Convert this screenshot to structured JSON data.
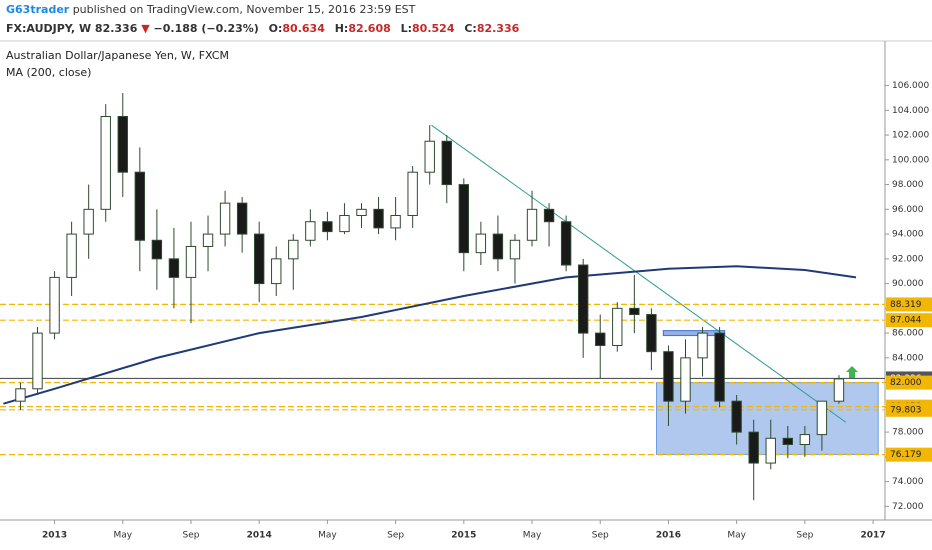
{
  "header": {
    "publisher": "G63trader",
    "published": "published on TradingView.com, November 15, 2016 23:59 EST",
    "symbol": "FX:AUDJPY, W",
    "last": "82.336",
    "change": "−0.188 (−0.23%)",
    "ohlc": [
      {
        "label": "O:",
        "value": "80.634"
      },
      {
        "label": "H:",
        "value": "82.608"
      },
      {
        "label": "L:",
        "value": "80.524"
      },
      {
        "label": "C:",
        "value": "82.336"
      }
    ]
  },
  "chart_data": {
    "type": "candlestick",
    "title": "Australian Dollar/Japanese Yen, W, FXCM",
    "up_color": "#ffffff",
    "down_color": "#1a1a1a",
    "outline_color": "#2e4a2e",
    "x": [
      -2,
      -1,
      0,
      1,
      2,
      3,
      4,
      5,
      6,
      7,
      8,
      9,
      10,
      11,
      12,
      13,
      14,
      15,
      16,
      17,
      18,
      19,
      20,
      21,
      22,
      23,
      24,
      25,
      26,
      27,
      28,
      29,
      30,
      31,
      32,
      33,
      34,
      35,
      36,
      37,
      38,
      39,
      40,
      41,
      42,
      43,
      44,
      45,
      46
    ],
    "open": [
      80.5,
      81.5,
      86,
      90.5,
      94,
      96,
      103.5,
      99,
      93.5,
      92,
      90.5,
      93,
      94,
      96.5,
      94,
      90,
      92,
      93.5,
      95,
      94.2,
      95.5,
      96,
      94.5,
      95.5,
      99,
      101.5,
      98,
      92.5,
      94,
      92,
      93.5,
      96,
      95,
      91.5,
      86,
      85,
      88,
      87.5,
      84.5,
      80.5,
      84,
      86,
      80.5,
      78,
      75.5,
      77.5,
      77,
      77.8,
      80.5
    ],
    "high": [
      82,
      86.5,
      91,
      95,
      98,
      104.5,
      105.4,
      101,
      96,
      94.5,
      95,
      95.5,
      97.5,
      97,
      95,
      93,
      94,
      96,
      95.8,
      96.5,
      96.5,
      97,
      97,
      99.5,
      102.8,
      102,
      98.5,
      95,
      95.5,
      94,
      97.5,
      96.5,
      95.5,
      92,
      87.5,
      88.5,
      90.7,
      88,
      85,
      85.5,
      86.5,
      86.5,
      81,
      79,
      79,
      78.5,
      78.5,
      80.5,
      82.6
    ],
    "low": [
      79.8,
      81,
      85.5,
      89,
      92,
      95,
      97,
      91,
      89.5,
      88,
      86.8,
      91,
      93,
      92.5,
      88.5,
      89,
      89.5,
      93,
      93.5,
      94,
      94.5,
      94,
      93.5,
      94.5,
      98,
      96.5,
      91,
      91.5,
      91,
      90,
      93,
      93,
      91,
      84,
      82.3,
      84.5,
      86,
      83,
      78.5,
      79.5,
      82.5,
      80,
      77,
      72.5,
      75,
      75.9,
      76,
      76.5,
      80.3
    ],
    "close": [
      81.5,
      86,
      90.5,
      94,
      96,
      103.5,
      99,
      93.5,
      92,
      90.5,
      93,
      94,
      96.5,
      94,
      90,
      92,
      93.5,
      95,
      94.2,
      95.5,
      96,
      94.5,
      95.5,
      99,
      101.5,
      98,
      92.5,
      94,
      92,
      93.5,
      96,
      95,
      91.5,
      86,
      85,
      88,
      87.5,
      84.5,
      80.5,
      84,
      86,
      80.5,
      78,
      75.5,
      77.5,
      77,
      77.8,
      80.5,
      82.3
    ],
    "indicators": [
      {
        "name": "MA (200, close)",
        "type": "line",
        "color": "#1f3a78",
        "x": [
          -3,
          0,
          6,
          12,
          18,
          24,
          30,
          36,
          40,
          44,
          47
        ],
        "values": [
          80.3,
          81.5,
          84,
          86,
          87.3,
          89,
          90.5,
          91.2,
          91.4,
          91.1,
          90.5
        ]
      }
    ],
    "levels": [
      {
        "value": 88.319,
        "color": "#f2b705"
      },
      {
        "value": 87.044,
        "color": "#f2b705"
      },
      {
        "value": 82.336,
        "color": "#555555"
      },
      {
        "value": 82,
        "label": "82.000",
        "color": "#f2b705"
      },
      {
        "value": 80.058,
        "color": "#f2b705"
      },
      {
        "value": 79.803,
        "color": "#f2b705"
      },
      {
        "value": 76.179,
        "color": "#f2b705"
      }
    ],
    "drawings": [
      {
        "type": "rectangle",
        "x": [
          35.3,
          48.3
        ],
        "y": [
          76.2,
          82
        ],
        "color": "#6f9be0"
      },
      {
        "type": "rectangle",
        "x": [
          35.7,
          39.3
        ],
        "y": [
          85.8,
          86.2
        ],
        "color": "#3f6fd0"
      },
      {
        "type": "trendline",
        "x": [
          22.1,
          46.4
        ],
        "y": [
          102.8,
          78.8
        ],
        "color": "#2a9d8f"
      }
    ],
    "xlim": [
      -3.2,
      48.7
    ],
    "ylim": [
      70.9,
      109.6
    ],
    "xticks": [
      {
        "value": 0,
        "label": "2013"
      },
      {
        "value": 4,
        "label": "May"
      },
      {
        "value": 8,
        "label": "Sep"
      },
      {
        "value": 12,
        "label": "2014"
      },
      {
        "value": 16,
        "label": "May"
      },
      {
        "value": 20,
        "label": "Sep"
      },
      {
        "value": 24,
        "label": "2015"
      },
      {
        "value": 28,
        "label": "May"
      },
      {
        "value": 32,
        "label": "Sep"
      },
      {
        "value": 36,
        "label": "2016"
      },
      {
        "value": 40,
        "label": "May"
      },
      {
        "value": 44,
        "label": "Sep"
      },
      {
        "value": 48,
        "label": "2017"
      }
    ],
    "yticks": [
      {
        "value": 72,
        "label": "72.000"
      },
      {
        "value": 74,
        "label": "74.000"
      },
      {
        "value": 76,
        "label": "76.000"
      },
      {
        "value": 78,
        "label": "78.000"
      },
      {
        "value": 80,
        "label": "80.000"
      },
      {
        "value": 82,
        "label": "82.000"
      },
      {
        "value": 84,
        "label": "84.000"
      },
      {
        "value": 86,
        "label": "86.000"
      },
      {
        "value": 88,
        "label": "88.000"
      },
      {
        "value": 90,
        "label": "90.000"
      },
      {
        "value": 92,
        "label": "92.000"
      },
      {
        "value": 94,
        "label": "94.000"
      },
      {
        "value": 96,
        "label": "96.000"
      },
      {
        "value": 98,
        "label": "98.000"
      },
      {
        "value": 100,
        "label": "100.000"
      },
      {
        "value": 102,
        "label": "102.000"
      },
      {
        "value": 104,
        "label": "104.000"
      },
      {
        "value": 106,
        "label": "106.000"
      }
    ]
  }
}
